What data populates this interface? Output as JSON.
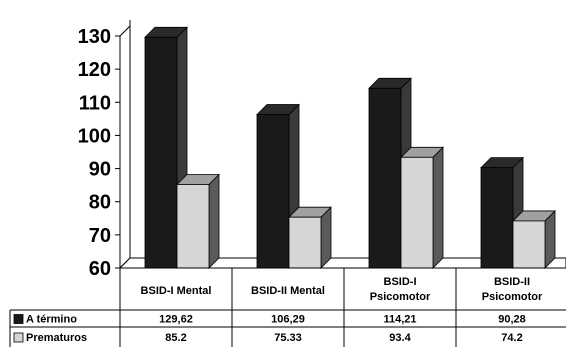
{
  "chart_data": {
    "type": "bar",
    "title": "",
    "xlabel": "",
    "ylabel": "",
    "ylim": [
      60,
      130
    ],
    "yticks": [
      60,
      70,
      80,
      90,
      100,
      110,
      120,
      130
    ],
    "categories": [
      [
        "BSID-I Mental"
      ],
      [
        "BSID-II Mental"
      ],
      [
        "BSID-I",
        "Psicomotor"
      ],
      [
        "BSID-II",
        "Psicomotor"
      ]
    ],
    "series": [
      {
        "name": "A término",
        "values": [
          129.62,
          106.29,
          114.21,
          90.28
        ],
        "labels": [
          "129,62",
          "106,29",
          "114,21",
          "90,28"
        ],
        "color": "#1a1a1a",
        "side_color": "#3a3a3a",
        "top_color": "#2a2a2a"
      },
      {
        "name": "Prematuros",
        "values": [
          85.2,
          75.33,
          93.4,
          74.2
        ],
        "labels": [
          "85.2",
          "75.33",
          "93.4",
          "74.2"
        ],
        "color": "#d6d6d6",
        "side_color": "#5a5a5a",
        "top_color": "#a0a0a0"
      }
    ],
    "legend_position": "data-table-left",
    "grid": false,
    "three_d": true
  }
}
